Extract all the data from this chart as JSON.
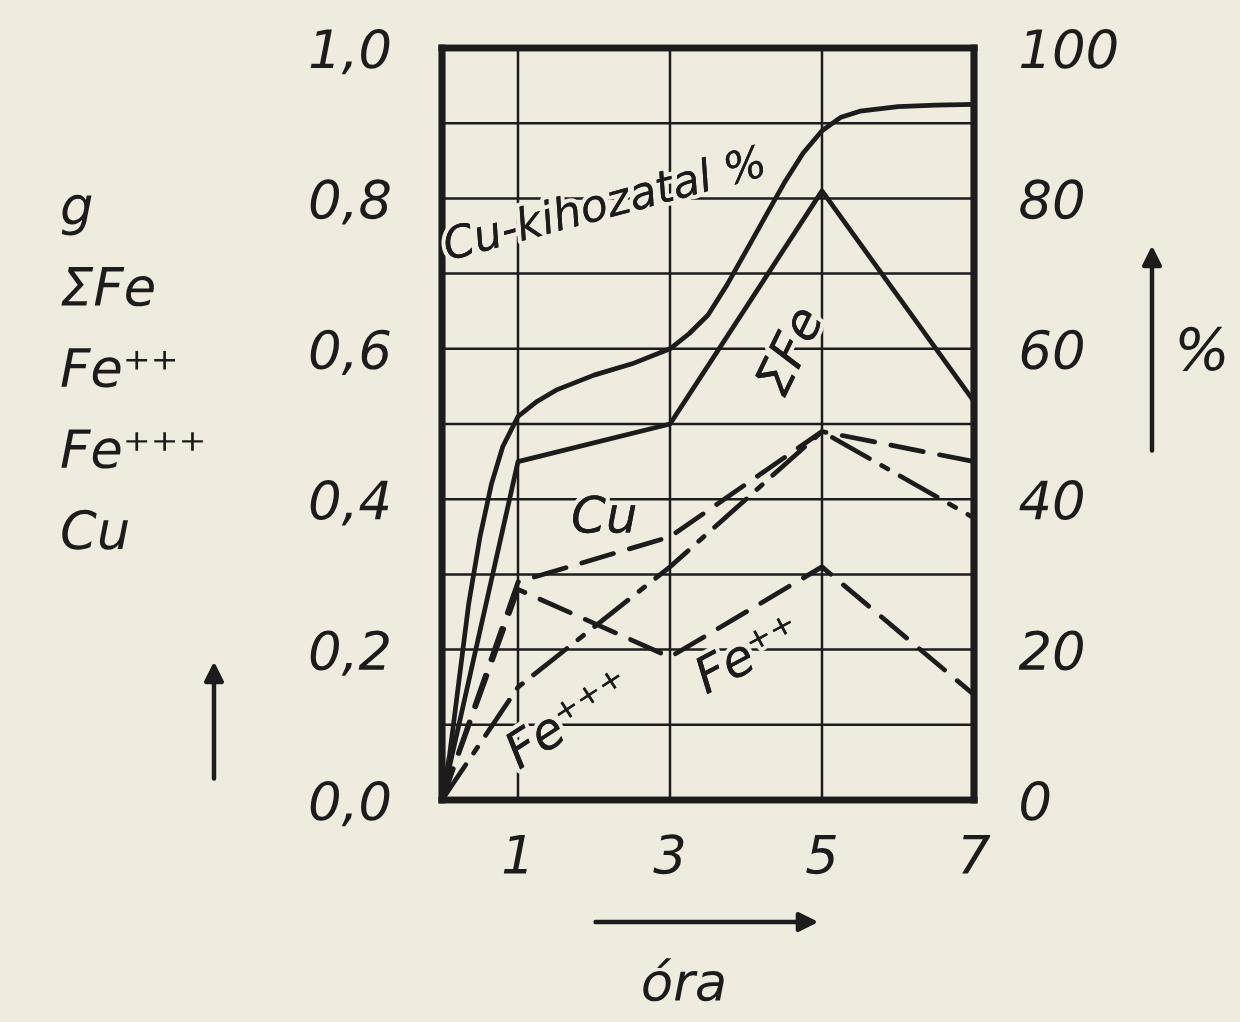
{
  "chart_data": {
    "type": "line",
    "xlabel": "óra",
    "ylabel": "g\nΣFe\nFe⁺⁺\nFe⁺⁺⁺\nCu",
    "y2label": "%",
    "xlim": [
      0,
      7
    ],
    "xticks": [
      1,
      3,
      5,
      7
    ],
    "ylim": [
      0,
      1.0
    ],
    "yticks": [
      {
        "value": 0,
        "label": "0,0"
      },
      {
        "value": 0.1,
        "label": null
      },
      {
        "value": 0.2,
        "label": "0,2"
      },
      {
        "value": 0.3,
        "label": null
      },
      {
        "value": 0.4,
        "label": "0,4"
      },
      {
        "value": 0.5,
        "label": null
      },
      {
        "value": 0.6,
        "label": "0,6"
      },
      {
        "value": 0.7,
        "label": null
      },
      {
        "value": 0.8,
        "label": "0,8"
      },
      {
        "value": 0.9,
        "label": null
      },
      {
        "value": 1.0,
        "label": "1,0"
      }
    ],
    "y2lim": [
      0,
      100
    ],
    "y2ticks": [
      0,
      20,
      40,
      60,
      80,
      100
    ],
    "grid": true,
    "series": [
      {
        "name": "Cu-kihozatal %",
        "color": "#1c1c1c",
        "axis": "y2",
        "line_style": "solid",
        "x": [
          0,
          0.1,
          0.2,
          0.35,
          0.5,
          0.65,
          0.8,
          1,
          1.25,
          1.5,
          1.75,
          2,
          2.5,
          3,
          3.25,
          3.5,
          3.75,
          4,
          4.25,
          4.5,
          4.75,
          5,
          5.25,
          5.5,
          6,
          6.5,
          7
        ],
        "values": [
          0,
          6,
          14,
          26,
          35,
          42,
          47,
          51,
          53,
          54.5,
          55.5,
          56.5,
          58,
          60,
          62,
          64.5,
          68.5,
          73,
          77.5,
          82,
          86,
          89,
          90.8,
          91.6,
          92.2,
          92.4,
          92.5
        ]
      },
      {
        "name": "ΣFe",
        "color": "#1c1c1c",
        "line_style": "solid",
        "x": [
          0,
          1,
          3,
          5,
          7
        ],
        "values": [
          0,
          0.45,
          0.5,
          0.81,
          0.53
        ]
      },
      {
        "name": "Cu",
        "color": "#1c1c1c",
        "line_style": "dashed",
        "x": [
          0,
          1,
          3,
          5,
          7
        ],
        "values": [
          0,
          0.29,
          0.35,
          0.49,
          0.45
        ]
      },
      {
        "name": "Fe⁺⁺⁺",
        "color": "#1c1c1c",
        "line_style": "dashdot",
        "x": [
          0,
          1,
          3,
          5,
          7
        ],
        "values": [
          0,
          0.15,
          0.31,
          0.49,
          0.375
        ]
      },
      {
        "name": "Fe⁺⁺",
        "color": "#1c1c1c",
        "line_style": "dashed",
        "x": [
          0,
          1,
          3,
          5,
          7
        ],
        "values": [
          0,
          0.28,
          0.19,
          0.31,
          0.14
        ]
      }
    ]
  }
}
